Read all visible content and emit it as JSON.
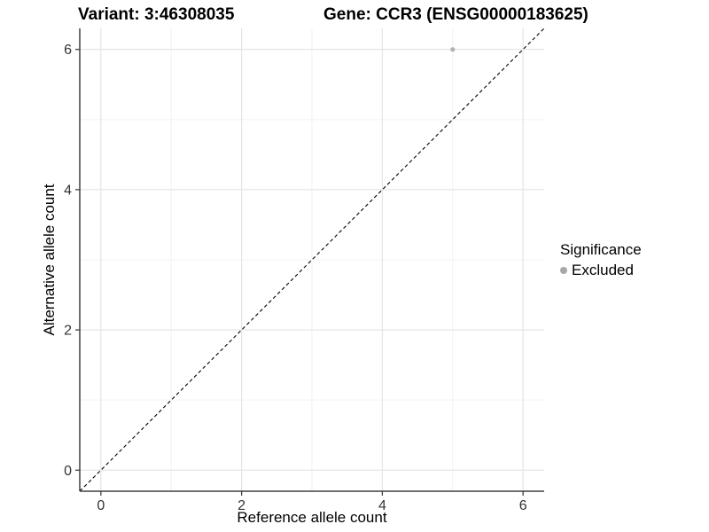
{
  "chart_data": {
    "type": "scatter",
    "titles": {
      "left": "Variant: 3:46308035",
      "right": "Gene: CCR3 (ENSG00000183625)"
    },
    "xlabel": "Reference allele count",
    "ylabel": "Alternative allele count",
    "xlim": [
      -0.3,
      6.3
    ],
    "ylim": [
      -0.3,
      6.3
    ],
    "xticks": [
      0,
      2,
      4,
      6
    ],
    "yticks": [
      0,
      2,
      4,
      6
    ],
    "xticks_minor": [
      1,
      3,
      5
    ],
    "yticks_minor": [
      1,
      3,
      5
    ],
    "grid": "major+minor",
    "reference_line": {
      "type": "identity y=x",
      "style": "dashed"
    },
    "series": [
      {
        "name": "Excluded",
        "points": [
          {
            "x": 5,
            "y": 6
          }
        ]
      }
    ],
    "legend": {
      "title": "Significance",
      "position": "right",
      "entries": [
        {
          "label": "Excluded"
        }
      ]
    }
  },
  "colors": {
    "background": "#ffffff",
    "text": "#000000",
    "axis_line": "#404040",
    "tick_label": "#333333",
    "grid_major": "#e5e5e5",
    "grid_minor": "#f2f2f2",
    "point": "#b3b3b3",
    "legend_key": "#a8a8a8",
    "identity_line": "#000000"
  }
}
